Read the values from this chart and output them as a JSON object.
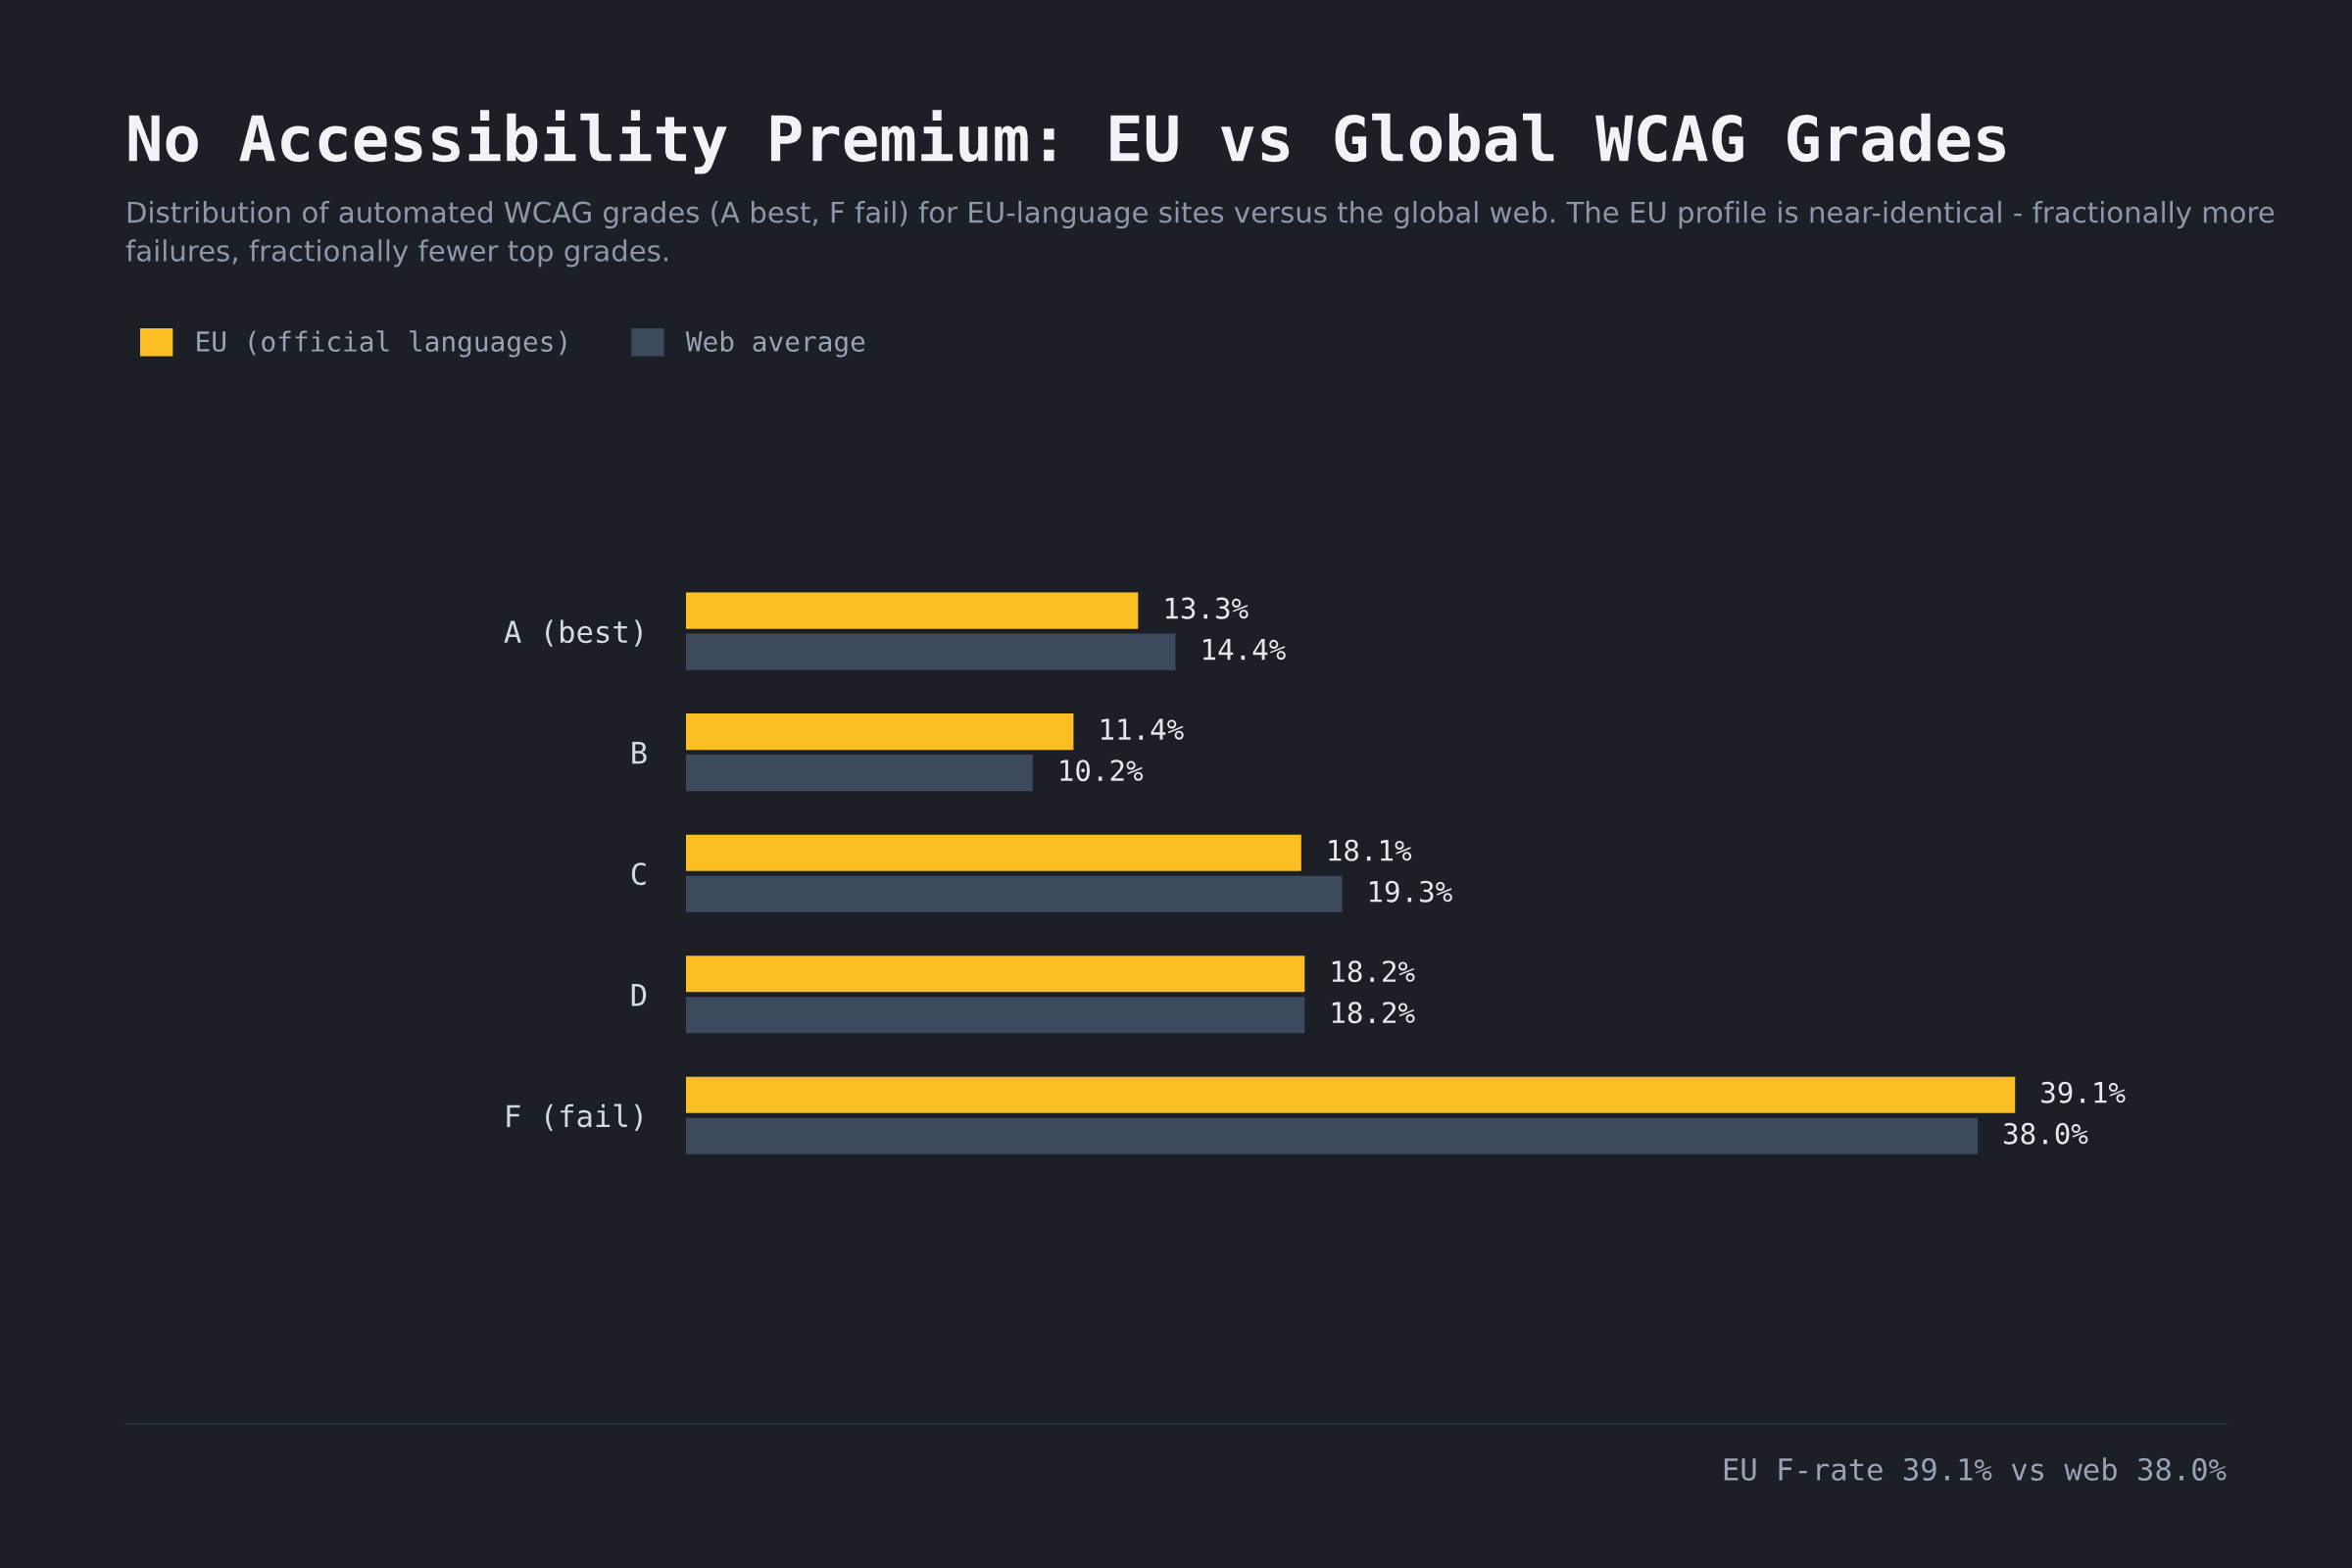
{
  "chart_data": {
    "type": "bar",
    "orientation": "horizontal",
    "title": "No Accessibility Premium: EU vs Global WCAG Grades",
    "subtitle": "Distribution of automated WCAG grades (A best, F fail) for EU-language sites versus the global web. The EU profile is near-identical - fractionally more failures, fractionally fewer top grades.",
    "categories": [
      "A (best)",
      "B",
      "C",
      "D",
      "F (fail)"
    ],
    "series": [
      {
        "name": "EU (official languages)",
        "color": "#fbbf24",
        "values": [
          13.3,
          11.4,
          18.1,
          18.2,
          39.1
        ],
        "value_labels": [
          "13.3%",
          "11.4%",
          "18.1%",
          "18.2%",
          "39.1%"
        ]
      },
      {
        "name": "Web average",
        "color": "#3d4a5e",
        "values": [
          14.4,
          10.2,
          19.3,
          18.2,
          38.0
        ],
        "value_labels": [
          "14.4%",
          "10.2%",
          "19.3%",
          "18.2%",
          "38.0%"
        ]
      }
    ],
    "legend": "top left",
    "grid": false,
    "annotations": [
      "EU F-rate 39.1% vs web 38.0%"
    ]
  }
}
